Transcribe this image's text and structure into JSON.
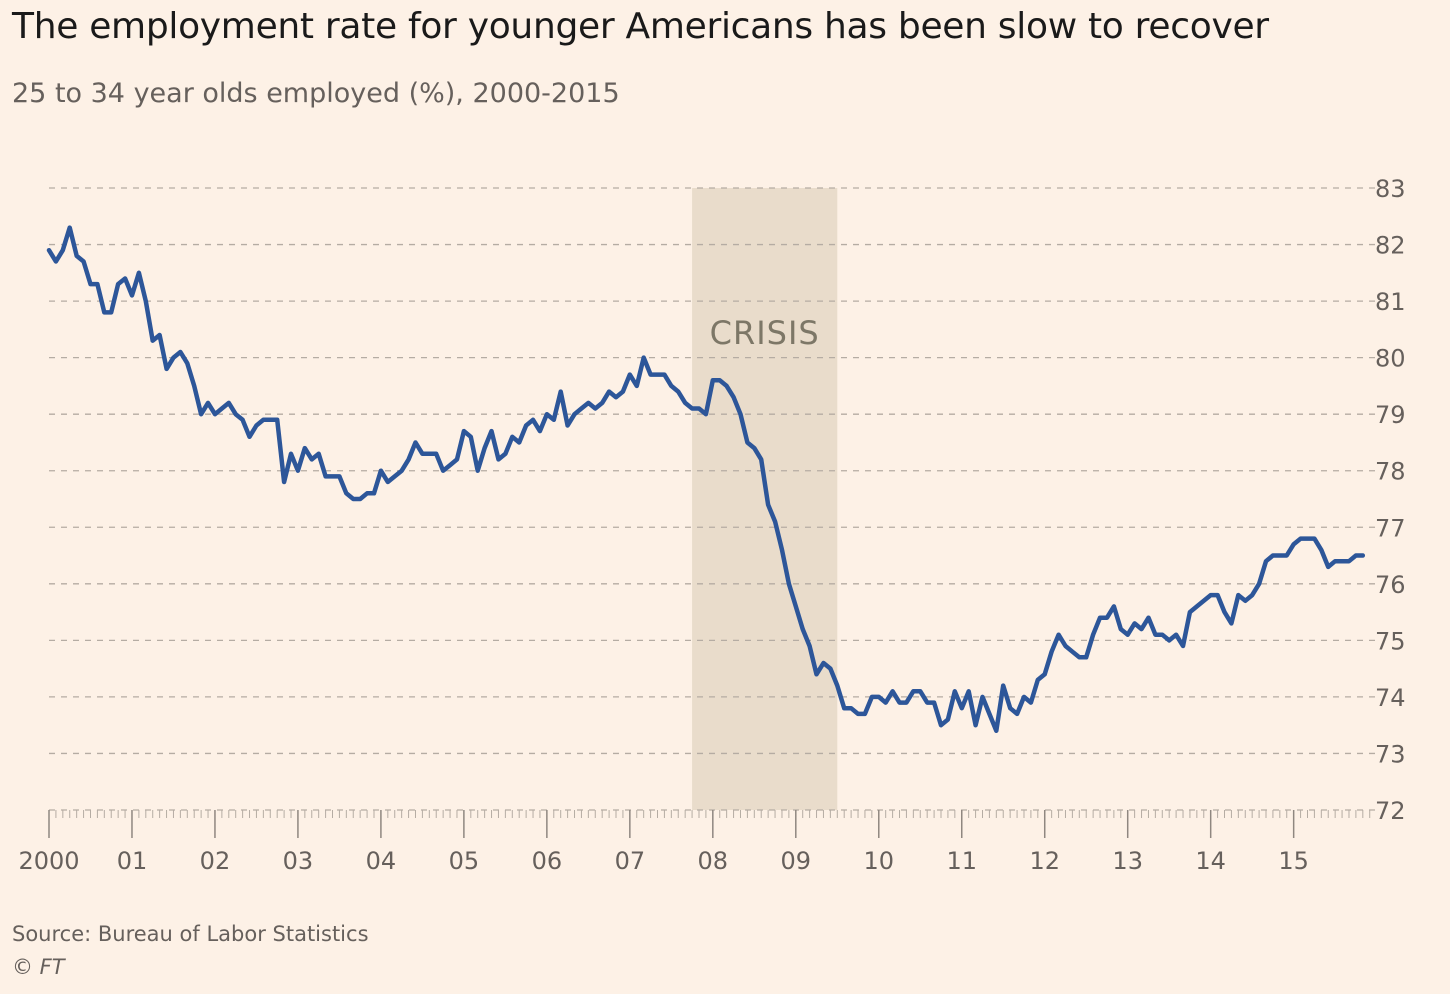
{
  "header": {
    "title": "The employment rate for younger Americans has been slow to recover",
    "subtitle": "25 to 34 year olds employed (%), 2000-2015"
  },
  "footer": {
    "source": "Source: Bureau of Labor Statistics",
    "copyright": "© FT"
  },
  "colors": {
    "background": "#fdf1e6",
    "line": "#2d5699",
    "crisis_band": "#e9dccb",
    "grid": "#b5aca3"
  },
  "chart_data": {
    "type": "line",
    "ylim": [
      72,
      83
    ],
    "xlim": [
      2000,
      2015.92
    ],
    "y_ticks": [
      72,
      73,
      74,
      75,
      76,
      77,
      78,
      79,
      80,
      81,
      82,
      83
    ],
    "grid": true,
    "x_ticks": [
      {
        "value": 2000,
        "label": "2000"
      },
      {
        "value": 2001,
        "label": "01"
      },
      {
        "value": 2002,
        "label": "02"
      },
      {
        "value": 2003,
        "label": "03"
      },
      {
        "value": 2004,
        "label": "04"
      },
      {
        "value": 2005,
        "label": "05"
      },
      {
        "value": 2006,
        "label": "06"
      },
      {
        "value": 2007,
        "label": "07"
      },
      {
        "value": 2008,
        "label": "08"
      },
      {
        "value": 2009,
        "label": "09"
      },
      {
        "value": 2010,
        "label": "10"
      },
      {
        "value": 2011,
        "label": "11"
      },
      {
        "value": 2012,
        "label": "12"
      },
      {
        "value": 2013,
        "label": "13"
      },
      {
        "value": 2014,
        "label": "14"
      },
      {
        "value": 2015,
        "label": "15"
      }
    ],
    "annotation": {
      "label": "CRISIS",
      "x_start": 2007.75,
      "x_end": 2009.5
    },
    "series": [
      {
        "start": "2000-01",
        "frequency": "monthly",
        "values": [
          81.9,
          81.7,
          81.9,
          82.3,
          81.8,
          81.7,
          81.3,
          81.3,
          80.8,
          80.8,
          81.3,
          81.4,
          81.1,
          81.5,
          81.0,
          80.3,
          80.4,
          79.8,
          80.0,
          80.1,
          79.9,
          79.5,
          79.0,
          79.2,
          79.0,
          79.1,
          79.2,
          79.0,
          78.9,
          78.6,
          78.8,
          78.9,
          78.9,
          78.9,
          77.8,
          78.3,
          78.0,
          78.4,
          78.2,
          78.3,
          77.9,
          77.9,
          77.9,
          77.6,
          77.5,
          77.5,
          77.6,
          77.6,
          78.0,
          77.8,
          77.9,
          78.0,
          78.2,
          78.5,
          78.3,
          78.3,
          78.3,
          78.0,
          78.1,
          78.2,
          78.7,
          78.6,
          78.0,
          78.4,
          78.7,
          78.2,
          78.3,
          78.6,
          78.5,
          78.8,
          78.9,
          78.7,
          79.0,
          78.9,
          79.4,
          78.8,
          79.0,
          79.1,
          79.2,
          79.1,
          79.2,
          79.4,
          79.3,
          79.4,
          79.7,
          79.5,
          80.0,
          79.7,
          79.7,
          79.7,
          79.5,
          79.4,
          79.2,
          79.1,
          79.1,
          79.0,
          79.6,
          79.6,
          79.5,
          79.3,
          79.0,
          78.5,
          78.4,
          78.2,
          77.4,
          77.1,
          76.6,
          76.0,
          75.6,
          75.2,
          74.9,
          74.4,
          74.6,
          74.5,
          74.2,
          73.8,
          73.8,
          73.7,
          73.7,
          74.0,
          74.0,
          73.9,
          74.1,
          73.9,
          73.9,
          74.1,
          74.1,
          73.9,
          73.9,
          73.5,
          73.6,
          74.1,
          73.8,
          74.1,
          73.5,
          74.0,
          73.7,
          73.4,
          74.2,
          73.8,
          73.7,
          74.0,
          73.9,
          74.3,
          74.4,
          74.8,
          75.1,
          74.9,
          74.8,
          74.7,
          74.7,
          75.1,
          75.4,
          75.4,
          75.6,
          75.2,
          75.1,
          75.3,
          75.2,
          75.4,
          75.1,
          75.1,
          75.0,
          75.1,
          74.9,
          75.5,
          75.6,
          75.7,
          75.8,
          75.8,
          75.5,
          75.3,
          75.8,
          75.7,
          75.8,
          76.0,
          76.4,
          76.5,
          76.5,
          76.5,
          76.7,
          76.8,
          76.8,
          76.8,
          76.6,
          76.3,
          76.4,
          76.4,
          76.4,
          76.5,
          76.5
        ]
      }
    ]
  }
}
